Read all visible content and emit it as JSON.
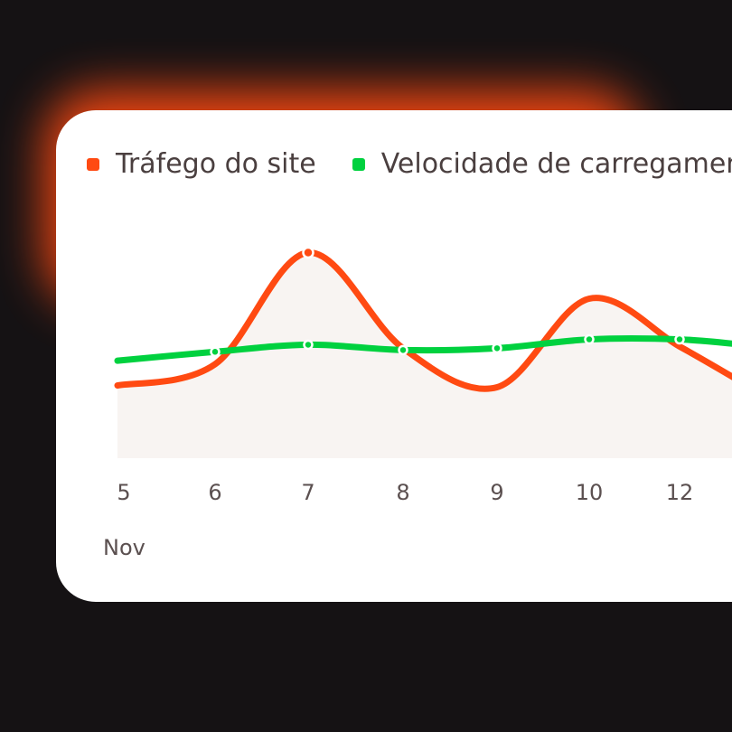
{
  "chart_data": {
    "type": "line",
    "x": [
      "5",
      "6",
      "7",
      "8",
      "9",
      "10",
      "12"
    ],
    "x_month": "Nov",
    "series": [
      {
        "name": "Tráfego do site",
        "color": "#ff4a12",
        "values": [
          14,
          25,
          88,
          34,
          12,
          62,
          35
        ],
        "area_fill": "#f8f4f2"
      },
      {
        "name": "Velocidade de carregamento",
        "color": "#00d13f",
        "values": [
          28,
          32,
          36,
          33,
          34,
          39,
          39
        ]
      }
    ],
    "ylim": [
      0,
      100
    ],
    "grid": false
  }
}
